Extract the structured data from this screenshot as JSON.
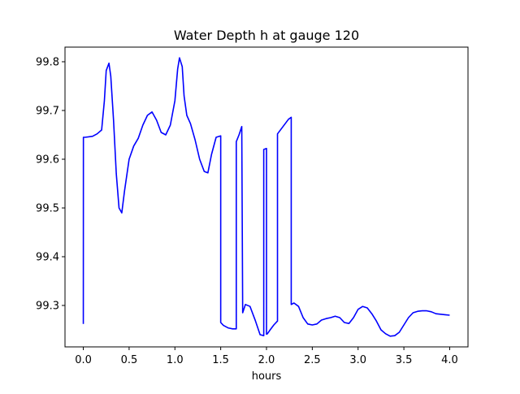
{
  "chart_data": {
    "type": "line",
    "title": "Water Depth h at gauge 120",
    "xlabel": "hours",
    "ylabel": "",
    "xlim": [
      -0.2,
      4.2
    ],
    "ylim": [
      99.215,
      99.83
    ],
    "xticks": [
      0.0,
      0.5,
      1.0,
      1.5,
      2.0,
      2.5,
      3.0,
      3.5,
      4.0
    ],
    "xtick_labels": [
      "0.0",
      "0.5",
      "1.0",
      "1.5",
      "2.0",
      "2.5",
      "3.0",
      "3.5",
      "4.0"
    ],
    "yticks": [
      99.3,
      99.4,
      99.5,
      99.6,
      99.7,
      99.8
    ],
    "ytick_labels": [
      "99.3",
      "99.4",
      "99.5",
      "99.6",
      "99.7",
      "99.8"
    ],
    "grid": false,
    "line_color": "#0000ff",
    "series": [
      {
        "x": [
          0.0,
          0.001,
          0.02,
          0.1,
          0.15,
          0.2,
          0.23,
          0.25,
          0.28,
          0.3,
          0.33,
          0.36,
          0.39,
          0.42,
          0.45,
          0.5,
          0.55,
          0.6,
          0.65,
          0.7,
          0.75,
          0.8,
          0.85,
          0.9,
          0.95,
          1.0,
          1.03,
          1.05,
          1.08,
          1.1,
          1.13,
          1.17,
          1.22,
          1.27,
          1.32,
          1.36,
          1.4,
          1.45,
          1.5,
          1.5,
          1.53,
          1.58,
          1.63,
          1.67,
          1.67,
          1.7,
          1.73,
          1.73,
          1.74,
          1.77,
          1.82,
          1.88,
          1.93,
          1.97,
          1.97,
          2.0,
          2.0,
          2.01,
          2.04,
          2.08,
          2.12,
          2.12,
          2.16,
          2.2,
          2.24,
          2.27,
          2.27,
          2.3,
          2.35,
          2.4,
          2.45,
          2.5,
          2.55,
          2.6,
          2.65,
          2.7,
          2.75,
          2.8,
          2.85,
          2.9,
          2.95,
          3.0,
          3.05,
          3.1,
          3.15,
          3.2,
          3.25,
          3.3,
          3.35,
          3.4,
          3.45,
          3.5,
          3.55,
          3.6,
          3.65,
          3.7,
          3.75,
          3.8,
          3.85,
          3.9,
          3.95,
          4.0
        ],
        "values": [
          99.262,
          99.645,
          99.645,
          99.647,
          99.652,
          99.66,
          99.72,
          99.782,
          99.797,
          99.77,
          99.68,
          99.57,
          99.5,
          99.49,
          99.535,
          99.6,
          99.627,
          99.643,
          99.67,
          99.69,
          99.697,
          99.68,
          99.655,
          99.65,
          99.67,
          99.72,
          99.785,
          99.808,
          99.79,
          99.73,
          99.69,
          99.673,
          99.64,
          99.6,
          99.575,
          99.572,
          99.61,
          99.645,
          99.648,
          99.265,
          99.259,
          99.254,
          99.252,
          99.252,
          99.636,
          99.65,
          99.667,
          99.665,
          99.285,
          99.302,
          99.298,
          99.268,
          99.24,
          99.238,
          99.62,
          99.622,
          99.241,
          99.242,
          99.25,
          99.26,
          99.268,
          99.652,
          99.662,
          99.672,
          99.682,
          99.686,
          99.302,
          99.305,
          99.298,
          99.275,
          99.262,
          99.26,
          99.262,
          99.27,
          99.273,
          99.275,
          99.278,
          99.275,
          99.265,
          99.263,
          99.275,
          99.292,
          99.298,
          99.295,
          99.283,
          99.268,
          99.25,
          99.242,
          99.237,
          99.238,
          99.245,
          99.26,
          99.275,
          99.285,
          99.288,
          99.289,
          99.289,
          99.287,
          99.283,
          99.282,
          99.281,
          99.28
        ]
      }
    ]
  }
}
